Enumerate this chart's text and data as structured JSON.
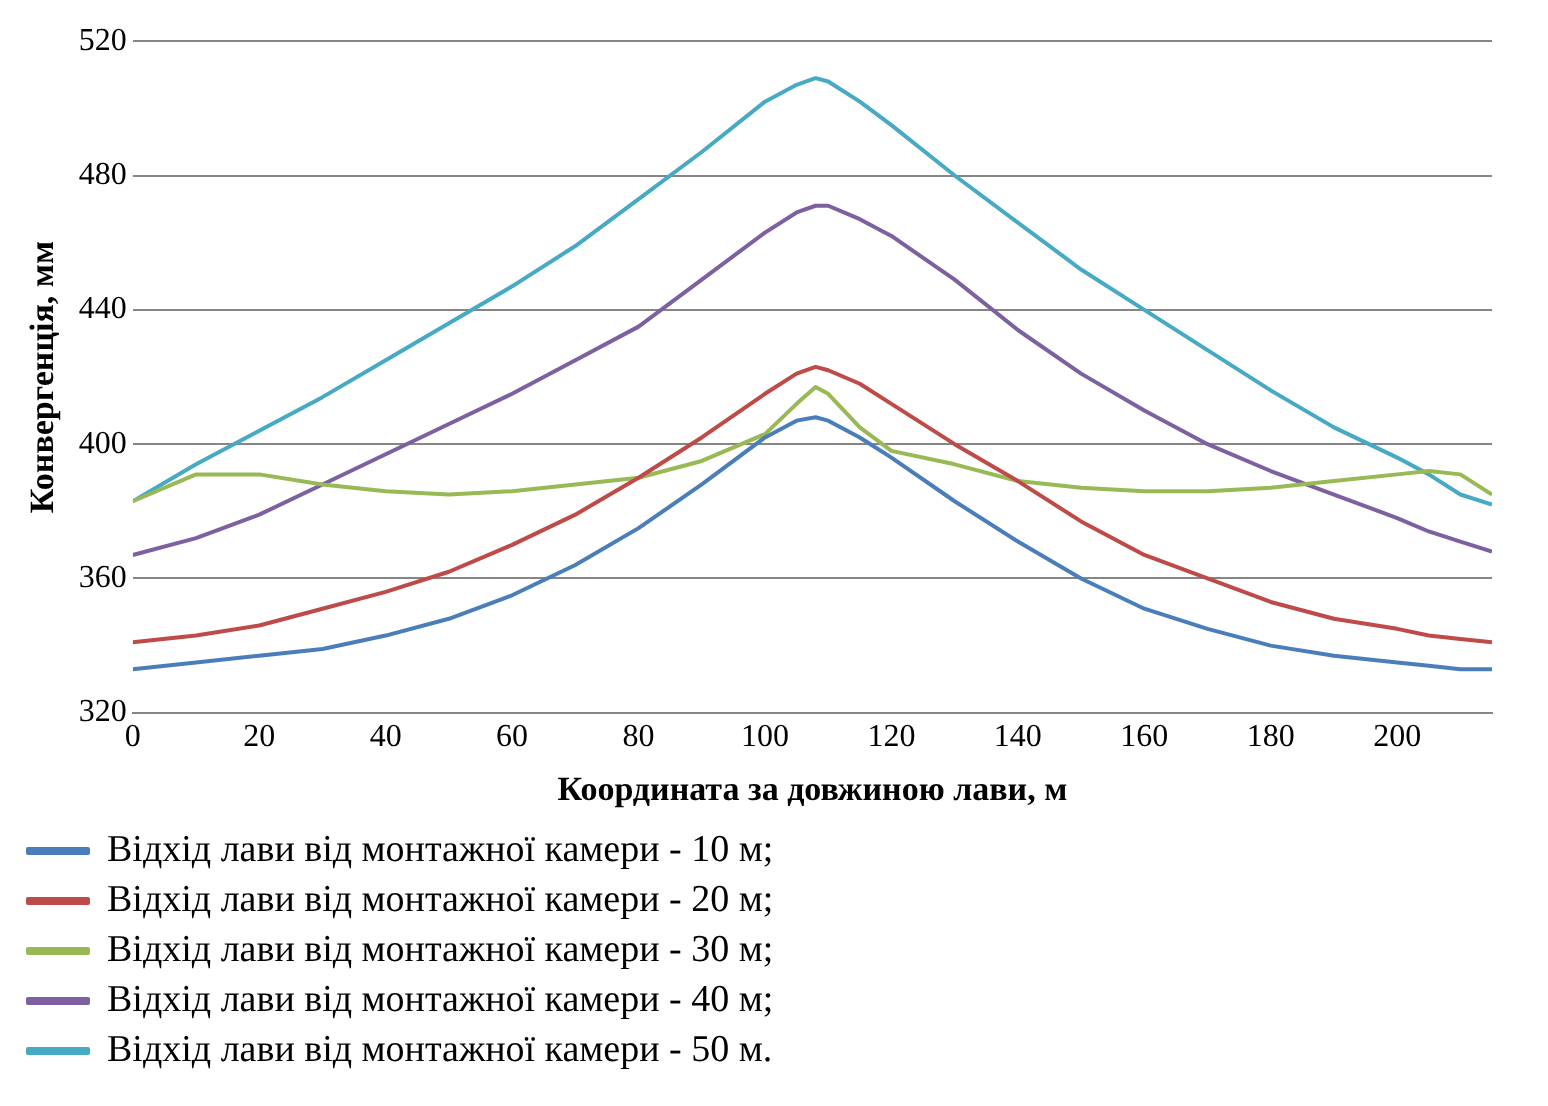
{
  "chart_data": {
    "type": "line",
    "xlabel": "Координата за довжиною лави, м",
    "ylabel": "Конвергенція, мм",
    "xlim": [
      0,
      215
    ],
    "xticks": [
      0,
      20,
      40,
      60,
      80,
      100,
      120,
      140,
      160,
      180,
      200
    ],
    "ylim": [
      320,
      520
    ],
    "yticks": [
      320,
      360,
      400,
      440,
      480,
      520
    ],
    "grid": "y",
    "legend": "bottom",
    "marker": "none",
    "line_style": "solid",
    "x": [
      0,
      10,
      20,
      30,
      40,
      50,
      60,
      70,
      80,
      90,
      100,
      105,
      108,
      110,
      115,
      120,
      130,
      140,
      150,
      160,
      170,
      180,
      190,
      200,
      205,
      210,
      215
    ],
    "series": [
      {
        "name": "Відхід лави від монтажної камери - 10 м;",
        "color": "#4a7ebb",
        "values": [
          333,
          335,
          337,
          339,
          343,
          348,
          355,
          364,
          375,
          388,
          402,
          407,
          408,
          407,
          402,
          396,
          383,
          371,
          360,
          351,
          345,
          340,
          337,
          335,
          334,
          333,
          333
        ]
      },
      {
        "name": "Відхід лави від монтажної камери - 20 м;",
        "color": "#be4b48",
        "values": [
          341,
          343,
          346,
          351,
          356,
          362,
          370,
          379,
          390,
          402,
          415,
          421,
          423,
          422,
          418,
          412,
          400,
          389,
          377,
          367,
          360,
          353,
          348,
          345,
          343,
          342,
          341
        ]
      },
      {
        "name": "Відхід лави від монтажної камери - 30 м;",
        "color": "#98b954",
        "values": [
          383,
          391,
          391,
          388,
          386,
          385,
          386,
          388,
          390,
          395,
          403,
          412,
          417,
          415,
          405,
          398,
          394,
          389,
          387,
          386,
          386,
          387,
          389,
          391,
          392,
          391,
          385
        ]
      },
      {
        "name": "Відхід лави від монтажної камери - 40 м;",
        "color": "#7d60a0",
        "values": [
          367,
          372,
          379,
          388,
          397,
          406,
          415,
          425,
          435,
          449,
          463,
          469,
          471,
          471,
          467,
          462,
          449,
          434,
          421,
          410,
          400,
          392,
          385,
          378,
          374,
          371,
          368
        ]
      },
      {
        "name": "Відхід лави від монтажної камери - 50 м.",
        "color": "#46aac5",
        "values": [
          383,
          394,
          404,
          414,
          425,
          436,
          447,
          459,
          473,
          487,
          502,
          507,
          509,
          508,
          502,
          495,
          480,
          466,
          452,
          440,
          428,
          416,
          405,
          396,
          391,
          385,
          382
        ]
      }
    ]
  }
}
